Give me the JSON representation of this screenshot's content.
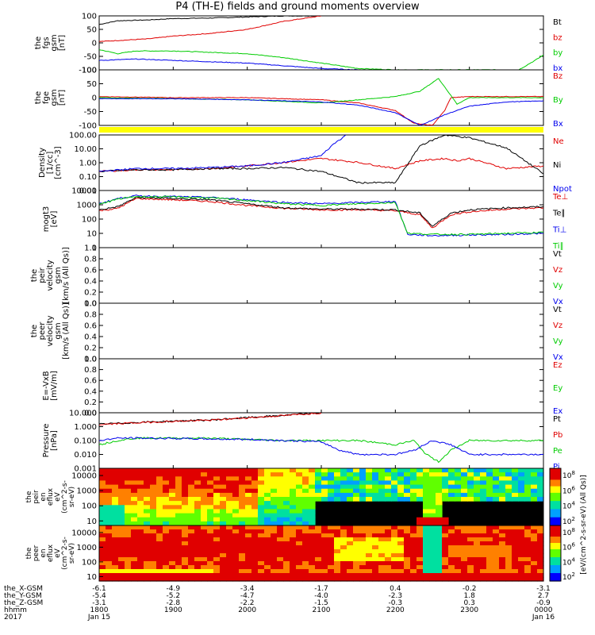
{
  "title": "P4 (TH-E) fields and ground moments overview",
  "colors": {
    "black": "#000000",
    "red": "#e00000",
    "green": "#00cc00",
    "blue": "#0000ee",
    "yellow": "#ffff00"
  },
  "chart_data": [
    {
      "id": "fgs",
      "type": "line",
      "ylabel": [
        "the",
        "fgs",
        "gsm",
        "[nT]"
      ],
      "ylim": [
        -100,
        100
      ],
      "yticks": [
        "100",
        "50",
        "0",
        "-50",
        "-100"
      ],
      "legend": [
        {
          "name": "Bt",
          "color": "black"
        },
        {
          "name": "bz",
          "color": "red"
        },
        {
          "name": "by",
          "color": "green"
        },
        {
          "name": "bx",
          "color": "blue"
        }
      ],
      "series": [
        {
          "name": "Bt",
          "x": [
            1800,
            1815,
            1840,
            1900,
            1930,
            2000,
            2030,
            2100
          ],
          "y": [
            68,
            82,
            85,
            90,
            92,
            96,
            100,
            100
          ]
        },
        {
          "name": "bz",
          "x": [
            1800,
            1840,
            1900,
            1930,
            2000,
            2030,
            2100
          ],
          "y": [
            5,
            15,
            25,
            35,
            50,
            80,
            100
          ]
        },
        {
          "name": "by",
          "x": [
            1800,
            1815,
            1830,
            1900,
            1930,
            2000,
            2030,
            2100,
            2130,
            2200,
            2300,
            2340,
            2355,
            2400
          ],
          "y": [
            -25,
            -40,
            -30,
            -30,
            -35,
            -40,
            -55,
            -75,
            -95,
            -100,
            -100,
            -100,
            -60,
            -45
          ]
        },
        {
          "name": "bx",
          "x": [
            1800,
            1830,
            1900,
            1930,
            2000,
            2030,
            2100,
            2130
          ],
          "y": [
            -65,
            -60,
            -65,
            -70,
            -75,
            -85,
            -95,
            -100
          ]
        }
      ]
    },
    {
      "id": "fge",
      "type": "line",
      "ylabel": [
        "the",
        "fge",
        "gsm",
        "[nT]"
      ],
      "ylim": [
        -130,
        130
      ],
      "yticks": [
        "100",
        "50",
        "0",
        "-50",
        "-100"
      ],
      "legend": [
        {
          "name": "Bz",
          "color": "red"
        },
        {
          "name": "By",
          "color": "green"
        },
        {
          "name": "Bx",
          "color": "blue"
        }
      ],
      "series": [
        {
          "name": "Bz",
          "x": [
            1800,
            1900,
            2000,
            2100,
            2130,
            2200,
            2215,
            2230,
            2240,
            2245,
            2300,
            2330,
            2400
          ],
          "y": [
            5,
            0,
            0,
            -10,
            -25,
            -60,
            -120,
            -130,
            -60,
            0,
            5,
            5,
            5
          ]
        },
        {
          "name": "By",
          "x": [
            1800,
            1900,
            2000,
            2100,
            2200,
            2220,
            2235,
            2245,
            2250,
            2300,
            2330,
            2400
          ],
          "y": [
            0,
            -5,
            -10,
            -25,
            5,
            30,
            90,
            10,
            -30,
            0,
            0,
            0
          ]
        },
        {
          "name": "Bx",
          "x": [
            1800,
            1900,
            2000,
            2100,
            2130,
            2200,
            2220,
            2240,
            2300,
            2330,
            2400
          ],
          "y": [
            -5,
            -5,
            -10,
            -20,
            -35,
            -70,
            -130,
            -80,
            -40,
            -20,
            -15
          ]
        }
      ]
    },
    {
      "id": "density",
      "type": "line",
      "ylabel": [
        "Density",
        "[1/cc]",
        "[cm^-3]"
      ],
      "yscale": "log",
      "ylim": [
        0.01,
        200
      ],
      "yticks": [
        "100.00",
        "10.00",
        "1.00",
        "0.10",
        "0.01"
      ],
      "legend": [
        {
          "name": "Ne",
          "color": "red"
        },
        {
          "name": "Ni",
          "color": "black"
        },
        {
          "name": "Npot",
          "color": "blue"
        }
      ],
      "series": [
        {
          "name": "Ne",
          "x": [
            1800,
            1830,
            1900,
            1930,
            2000,
            2030,
            2100,
            2130,
            2200,
            2220,
            2240,
            2250,
            2300,
            2330,
            2400
          ],
          "y": [
            0.3,
            0.4,
            0.4,
            0.5,
            0.8,
            1.5,
            3,
            1.5,
            0.5,
            2,
            3,
            2,
            3,
            0.5,
            0.8
          ]
        },
        {
          "name": "Ni",
          "x": [
            1800,
            1830,
            1900,
            1930,
            2000,
            2030,
            2100,
            2130,
            2200,
            2220,
            2240,
            2300,
            2330,
            2400
          ],
          "y": [
            0.3,
            0.4,
            0.4,
            0.5,
            0.5,
            0.6,
            0.3,
            0.04,
            0.04,
            30,
            200,
            120,
            20,
            0.2
          ]
        },
        {
          "name": "Npot",
          "x": [
            1800,
            1830,
            1900,
            1930,
            2000,
            2030,
            2100,
            2110,
            2120
          ],
          "y": [
            0.3,
            0.5,
            0.5,
            0.6,
            0.8,
            1.5,
            5,
            40,
            200
          ]
        }
      ]
    },
    {
      "id": "temp",
      "type": "line",
      "ylabel": [
        "mogt3",
        "[eV]"
      ],
      "yscale": "log",
      "ylim": [
        1,
        20000
      ],
      "yticks": [
        "10000",
        "1000",
        "100",
        "10",
        "1"
      ],
      "legend": [
        {
          "name": "Te⊥",
          "color": "red"
        },
        {
          "name": "Te∥",
          "color": "black"
        },
        {
          "name": "Ti⊥",
          "color": "blue"
        },
        {
          "name": "Ti∥",
          "color": "green"
        }
      ],
      "series": [
        {
          "name": "Te⊥",
          "x": [
            1800,
            1815,
            1830,
            1900,
            1930,
            2000,
            2030,
            2100,
            2130,
            2200,
            2220,
            2230,
            2245,
            2300,
            2330,
            2400
          ],
          "y": [
            600,
            900,
            5000,
            4000,
            3000,
            1500,
            900,
            700,
            700,
            600,
            300,
            30,
            300,
            500,
            800,
            1000
          ]
        },
        {
          "name": "Te∥",
          "x": [
            1800,
            1815,
            1830,
            1900,
            1930,
            2000,
            2030,
            2100,
            2130,
            2200,
            2220,
            2230,
            2245,
            2300,
            2330,
            2400
          ],
          "y": [
            700,
            1200,
            6000,
            5000,
            4000,
            2000,
            1000,
            800,
            800,
            700,
            400,
            40,
            400,
            700,
            1000,
            1200
          ]
        },
        {
          "name": "Ti⊥",
          "x": [
            1800,
            1815,
            1830,
            1900,
            1930,
            2000,
            2030,
            2100,
            2130,
            2200,
            2210,
            2230,
            2300,
            2330,
            2400
          ],
          "y": [
            2000,
            5000,
            8000,
            7000,
            6000,
            4000,
            2500,
            2000,
            2500,
            3000,
            10,
            8,
            9,
            10,
            12
          ]
        },
        {
          "name": "Ti∥",
          "x": [
            1800,
            1815,
            1830,
            1900,
            1930,
            2000,
            2030,
            2100,
            2130,
            2200,
            2210,
            2230,
            2300,
            2330,
            2400
          ],
          "y": [
            1800,
            4500,
            7000,
            6500,
            5500,
            3500,
            2000,
            1500,
            2000,
            2500,
            12,
            10,
            10,
            12,
            14
          ]
        }
      ]
    },
    {
      "id": "peir",
      "type": "line",
      "ylabel": [
        "the",
        "peir",
        "velocity",
        "gsm",
        "[km/s (All Qs)]"
      ],
      "ylim": [
        0,
        1
      ],
      "yticks": [
        "1.0",
        "0.8",
        "0.6",
        "0.4",
        "0.2",
        "0.0"
      ],
      "legend": [
        {
          "name": "Vt",
          "color": "black"
        },
        {
          "name": "Vz",
          "color": "red"
        },
        {
          "name": "Vy",
          "color": "green"
        },
        {
          "name": "Vx",
          "color": "blue"
        }
      ],
      "series": []
    },
    {
      "id": "peer",
      "type": "line",
      "ylabel": [
        "the",
        "peer",
        "velocity",
        "gsm",
        "[km/s (All Qs)]"
      ],
      "ylim": [
        0,
        1
      ],
      "yticks": [
        "1.0",
        "0.8",
        "0.6",
        "0.4",
        "0.2",
        "0.0"
      ],
      "legend": [
        {
          "name": "Vt",
          "color": "black"
        },
        {
          "name": "Vz",
          "color": "red"
        },
        {
          "name": "Vy",
          "color": "green"
        },
        {
          "name": "Vx",
          "color": "blue"
        }
      ],
      "series": []
    },
    {
      "id": "efield",
      "type": "line",
      "ylabel": [
        "E=-VxB",
        "[mV/m]"
      ],
      "ylim": [
        0,
        1
      ],
      "yticks": [
        "1.0",
        "0.8",
        "0.6",
        "0.4",
        "0.2",
        "0.0"
      ],
      "legend": [
        {
          "name": "Ez",
          "color": "red"
        },
        {
          "name": "Ey",
          "color": "green"
        },
        {
          "name": "Ex",
          "color": "blue"
        }
      ],
      "series": []
    },
    {
      "id": "pressure",
      "type": "line",
      "ylabel": [
        "Pressure",
        "[nPa]"
      ],
      "yscale": "log",
      "ylim": [
        0.001,
        10
      ],
      "yticks": [
        "10.000",
        "1.000",
        "0.100",
        "0.010",
        "0.001"
      ],
      "legend": [
        {
          "name": "Pt",
          "color": "black"
        },
        {
          "name": "Pb",
          "color": "red"
        },
        {
          "name": "Pe",
          "color": "green"
        },
        {
          "name": "Pi",
          "color": "blue"
        }
      ],
      "series": [
        {
          "name": "Pt",
          "x": [
            1800,
            1830,
            1900,
            1930,
            2000,
            2030,
            2100
          ],
          "y": [
            1.5,
            2,
            2.5,
            3,
            4.5,
            6.5,
            10
          ]
        },
        {
          "name": "Pb",
          "x": [
            1800,
            1830,
            1900,
            1930,
            2000,
            2030,
            2100
          ],
          "y": [
            1.4,
            1.9,
            2.4,
            2.9,
            4.3,
            6.3,
            9.8
          ]
        },
        {
          "name": "Pe",
          "x": [
            1800,
            1815,
            1830,
            1900,
            1930,
            2000,
            2030,
            2100,
            2130,
            2200,
            2215,
            2225,
            2235,
            2245,
            2300,
            2330,
            2400
          ],
          "y": [
            0.05,
            0.1,
            0.15,
            0.15,
            0.15,
            0.12,
            0.1,
            0.1,
            0.1,
            0.05,
            0.1,
            0.01,
            0.003,
            0.02,
            0.1,
            0.1,
            0.1
          ]
        },
        {
          "name": "Pi",
          "x": [
            1800,
            1815,
            1830,
            1900,
            1930,
            2000,
            2030,
            2100,
            2115,
            2130,
            2200,
            2215,
            2230,
            2245,
            2300,
            2330,
            2400
          ],
          "y": [
            0.1,
            0.15,
            0.15,
            0.14,
            0.13,
            0.12,
            0.1,
            0.08,
            0.02,
            0.01,
            0.01,
            0.02,
            0.1,
            0.05,
            0.01,
            0.01,
            0.01
          ]
        }
      ]
    },
    {
      "id": "peir_spec",
      "type": "heatmap",
      "ylabel": [
        "the",
        "peir",
        "en",
        "eflux",
        "eV",
        "(cm^2-s-",
        "sr-eV)"
      ],
      "yscale": "log",
      "ylim": [
        5,
        30000
      ],
      "yticks": [
        "10000",
        "1000",
        "100",
        "10"
      ],
      "colorbar": {
        "ticks": [
          "10^8",
          "10^6",
          "10^4",
          "10^2"
        ],
        "label": "[eV/(cm^2-s-sr-eV)]"
      }
    },
    {
      "id": "peer_spec",
      "type": "heatmap",
      "ylabel": [
        "the",
        "peer",
        "en",
        "eflux",
        "eV",
        "(cm^2-s-",
        "sr-eV)"
      ],
      "yscale": "log",
      "ylim": [
        5,
        30000
      ],
      "yticks": [
        "10000",
        "1000",
        "100",
        "10"
      ],
      "colorbar": {
        "ticks": [
          "10^8",
          "10^6",
          "10^4",
          "10^2"
        ],
        "label": "[eV/(cm^2-s-sr-eV) (All Qs)]"
      }
    }
  ],
  "xaxis": {
    "rows": [
      {
        "label": "the_X-GSM",
        "values": [
          "-6.1",
          "-4.9",
          "-3.4",
          "-1.7",
          "0.4",
          "-0.2",
          "-3.1"
        ]
      },
      {
        "label": "the_Y-GSM",
        "values": [
          "-5.4",
          "-5.2",
          "-4.7",
          "-4.0",
          "-2.3",
          "1.8",
          "2.7"
        ]
      },
      {
        "label": "the_Z-GSM",
        "values": [
          "-3.1",
          "-2.8",
          "-2.2",
          "-1.5",
          "-0.3",
          "0.3",
          "-0.9"
        ]
      },
      {
        "label": "hhmm",
        "values": [
          "1800",
          "1900",
          "2000",
          "2100",
          "2200",
          "2300",
          "0000"
        ]
      },
      {
        "label": "2017",
        "values": [
          "Jan 15",
          "",
          "",
          "",
          "",
          "",
          "Jan 16"
        ]
      }
    ],
    "tick_times": [
      1800,
      1900,
      2000,
      2100,
      2200,
      2300,
      2400
    ]
  }
}
